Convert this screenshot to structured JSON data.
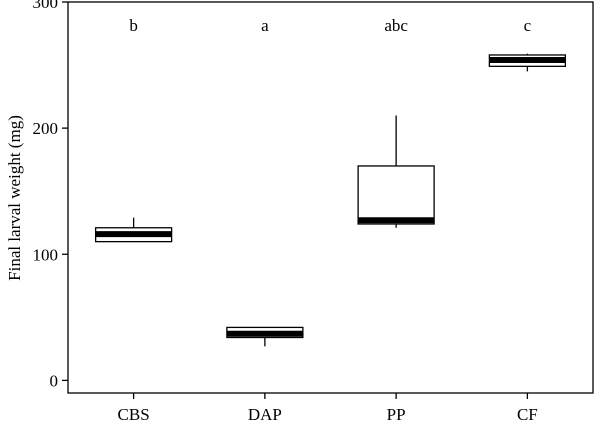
{
  "chart_data": {
    "type": "box",
    "title": "",
    "xlabel": "",
    "ylabel": "Final larval weight (mg)",
    "ylim": [
      -10,
      300
    ],
    "yticks": [
      0,
      100,
      200,
      300
    ],
    "grid": false,
    "categories": [
      "CBS",
      "DAP",
      "PP",
      "CF"
    ],
    "group_letters": [
      "b",
      "a",
      "abc",
      "c"
    ],
    "boxes": [
      {
        "category": "CBS",
        "whisker_low": 110,
        "q1": 110,
        "median": 116,
        "q3": 121,
        "whisker_high": 129
      },
      {
        "category": "DAP",
        "whisker_low": 27,
        "q1": 34,
        "median": 37,
        "q3": 42,
        "whisker_high": 42
      },
      {
        "category": "PP",
        "whisker_low": 121,
        "q1": 124,
        "median": 127,
        "q3": 170,
        "whisker_high": 210
      },
      {
        "category": "CF",
        "whisker_low": 245,
        "q1": 249,
        "median": 254,
        "q3": 258,
        "whisker_high": 259
      }
    ],
    "colors": {
      "box_fill": "#ffffff",
      "line": "#000000"
    }
  }
}
